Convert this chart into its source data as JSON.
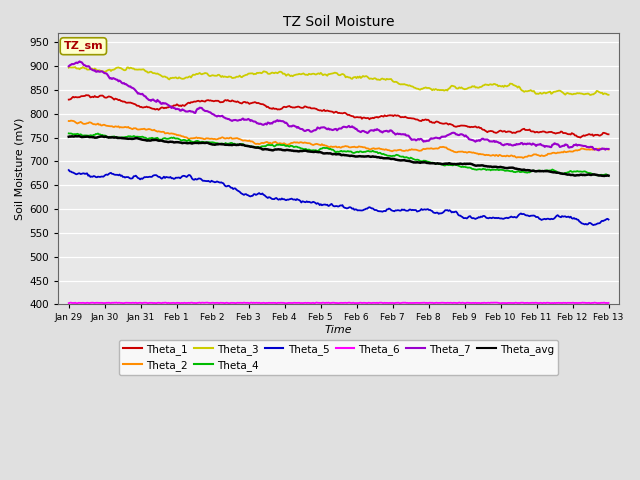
{
  "title": "TZ Soil Moisture",
  "xlabel": "Time",
  "ylabel": "Soil Moisture (mV)",
  "ylim": [
    400,
    970
  ],
  "yticks": [
    400,
    450,
    500,
    550,
    600,
    650,
    700,
    750,
    800,
    850,
    900,
    950
  ],
  "date_labels": [
    "Jan 29",
    "Jan 30",
    "Jan 31",
    "Feb 1",
    "Feb 2",
    "Feb 3",
    "Feb 4",
    "Feb 5",
    "Feb 6",
    "Feb 7",
    "Feb 8",
    "Feb 9",
    "Feb 10",
    "Feb 11",
    "Feb 12",
    "Feb 13"
  ],
  "n_points": 16,
  "series": {
    "Theta_1": {
      "color": "#cc0000"
    },
    "Theta_2": {
      "color": "#ff8c00"
    },
    "Theta_3": {
      "color": "#cccc00"
    },
    "Theta_4": {
      "color": "#00bb00"
    },
    "Theta_5": {
      "color": "#0000cc"
    },
    "Theta_6": {
      "color": "#ff00ff"
    },
    "Theta_7": {
      "color": "#9900cc"
    },
    "Theta_avg": {
      "color": "#000000"
    }
  },
  "legend_label": "TZ_sm",
  "legend_label_color": "#aa0000",
  "legend_box_facecolor": "#ffffcc",
  "legend_box_edgecolor": "#999900",
  "plot_bg_color": "#e8e8e8",
  "fig_bg_color": "#e0e0e0",
  "grid_color": "#ffffff"
}
